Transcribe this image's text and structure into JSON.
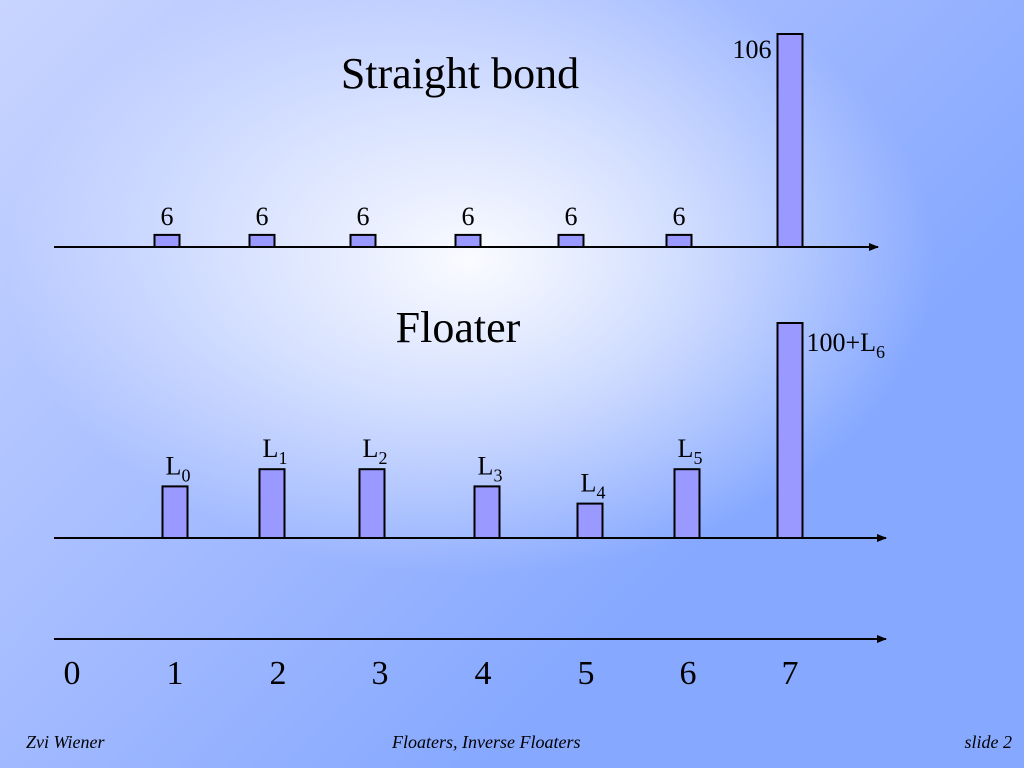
{
  "colors": {
    "bar_fill": "#9999ff",
    "bar_stroke": "#000000",
    "axis": "#000000",
    "background_light": "#ffffff",
    "background_dark": "#86a8ff"
  },
  "chart_data": [
    {
      "type": "bar",
      "title": "Straight bond",
      "x": [
        1,
        2,
        3,
        4,
        5,
        6,
        7
      ],
      "values": [
        6,
        6,
        6,
        6,
        6,
        6,
        106
      ],
      "data_labels": [
        "6",
        "6",
        "6",
        "6",
        "6",
        "6",
        "106"
      ],
      "xlim": [
        0,
        7
      ],
      "grid": false,
      "legend": "none"
    },
    {
      "type": "bar",
      "title": "Floater",
      "x": [
        1,
        2,
        3,
        4,
        5,
        6,
        7
      ],
      "values": [
        6,
        8,
        8,
        6,
        4,
        8,
        25
      ],
      "data_labels": [
        {
          "base": "L",
          "sub": "0"
        },
        {
          "base": "L",
          "sub": "1"
        },
        {
          "base": "L",
          "sub": "2"
        },
        {
          "base": "L",
          "sub": "3"
        },
        {
          "base": "L",
          "sub": "4"
        },
        {
          "base": "L",
          "sub": "5"
        },
        {
          "base": "100+L",
          "sub": "6"
        }
      ],
      "xlim": [
        0,
        7
      ],
      "grid": false,
      "legend": "none"
    }
  ],
  "time_axis": {
    "ticks": [
      "0",
      "1",
      "2",
      "3",
      "4",
      "5",
      "6",
      "7"
    ]
  },
  "footer": {
    "author": "Zvi Wiener",
    "topic": "Floaters, Inverse Floaters",
    "slide": "slide 2"
  }
}
